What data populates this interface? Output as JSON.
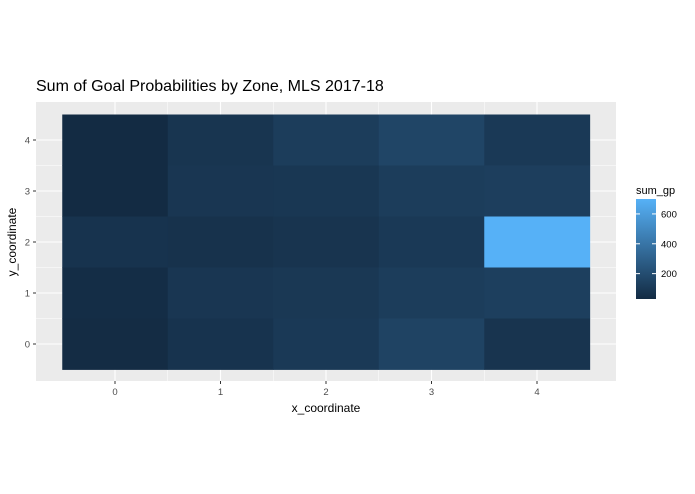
{
  "chart_data": {
    "type": "heatmap",
    "title": "Sum of Goal Probabilities by Zone, MLS 2017-18",
    "xlabel": "x_coordinate",
    "ylabel": "y_coordinate",
    "x_ticks": [
      "0",
      "1",
      "2",
      "3",
      "4"
    ],
    "y_ticks": [
      "0",
      "1",
      "2",
      "3",
      "4"
    ],
    "grid": true,
    "legend": {
      "title": "sum_gp",
      "placement": "right",
      "labels": [
        "200",
        "400",
        "600"
      ],
      "breaks": [
        200,
        400,
        600
      ],
      "min": 30,
      "max": 700,
      "low_color": "#132B43",
      "high_color": "#56B1F7"
    },
    "cells": [
      {
        "x": 0,
        "y": 4,
        "value": 30
      },
      {
        "x": 1,
        "y": 4,
        "value": 80
      },
      {
        "x": 2,
        "y": 4,
        "value": 120
      },
      {
        "x": 3,
        "y": 4,
        "value": 160
      },
      {
        "x": 4,
        "y": 4,
        "value": 100
      },
      {
        "x": 0,
        "y": 3,
        "value": 30
      },
      {
        "x": 1,
        "y": 3,
        "value": 85
      },
      {
        "x": 2,
        "y": 3,
        "value": 90
      },
      {
        "x": 3,
        "y": 3,
        "value": 120
      },
      {
        "x": 4,
        "y": 3,
        "value": 125
      },
      {
        "x": 0,
        "y": 2,
        "value": 70
      },
      {
        "x": 1,
        "y": 2,
        "value": 65
      },
      {
        "x": 2,
        "y": 2,
        "value": 75
      },
      {
        "x": 3,
        "y": 2,
        "value": 100
      },
      {
        "x": 4,
        "y": 2,
        "value": 700
      },
      {
        "x": 0,
        "y": 1,
        "value": 40
      },
      {
        "x": 1,
        "y": 1,
        "value": 85
      },
      {
        "x": 2,
        "y": 1,
        "value": 95
      },
      {
        "x": 3,
        "y": 1,
        "value": 120
      },
      {
        "x": 4,
        "y": 1,
        "value": 130
      },
      {
        "x": 0,
        "y": 0,
        "value": 35
      },
      {
        "x": 1,
        "y": 0,
        "value": 70
      },
      {
        "x": 2,
        "y": 0,
        "value": 100
      },
      {
        "x": 3,
        "y": 0,
        "value": 150
      },
      {
        "x": 4,
        "y": 0,
        "value": 75
      }
    ]
  }
}
